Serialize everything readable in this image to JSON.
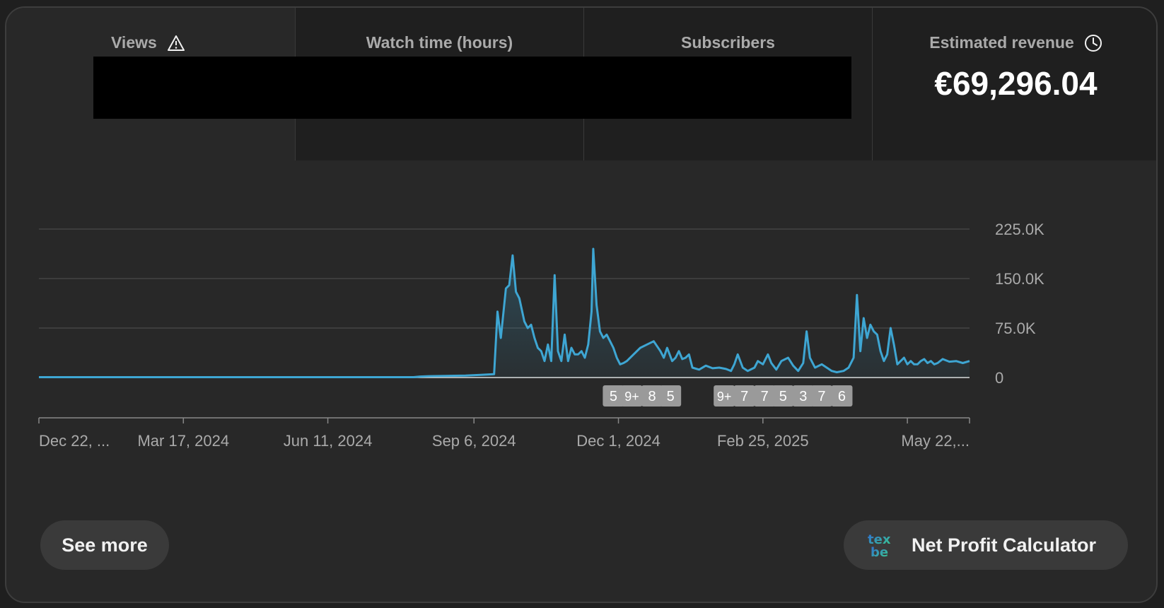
{
  "metrics": {
    "views": {
      "label": "Views",
      "icon": "warning-icon"
    },
    "watch_time": {
      "label": "Watch time (hours)"
    },
    "subscribers": {
      "label": "Subscribers"
    },
    "revenue": {
      "label": "Estimated revenue",
      "value": "€69,296.04",
      "icon": "clock-icon"
    }
  },
  "chart_data": {
    "type": "area",
    "color": "#3ea6d3",
    "yticks": [
      "225.0K",
      "150.0K",
      "75.0K",
      "0"
    ],
    "ytick_values": [
      225000,
      150000,
      75000,
      0
    ],
    "ylim": [
      0,
      225000
    ],
    "xlim": [
      "2023-12-22",
      "2025-06-28"
    ],
    "xtick_labels": [
      "Dec 22, ...",
      "Mar 17, 2024",
      "Jun 11, 2024",
      "Sep 6, 2024",
      "Dec 1, 2024",
      "Feb 25, 2025",
      "May 22,..."
    ],
    "xtick_dates": [
      "2023-12-22",
      "2024-03-17",
      "2024-06-11",
      "2024-09-06",
      "2024-12-01",
      "2025-02-25",
      "2025-05-22"
    ],
    "series": [
      {
        "x": [
          "2023-12-22",
          "2024-08-01",
          "2024-08-05",
          "2024-08-10",
          "2024-08-20",
          "2024-09-01",
          "2024-09-10",
          "2024-09-18",
          "2024-09-20",
          "2024-09-22",
          "2024-09-25",
          "2024-09-27",
          "2024-09-29",
          "2024-10-01",
          "2024-10-03",
          "2024-10-06",
          "2024-10-08",
          "2024-10-10",
          "2024-10-12",
          "2024-10-14",
          "2024-10-16",
          "2024-10-18",
          "2024-10-20",
          "2024-10-22",
          "2024-10-24",
          "2024-10-26",
          "2024-10-28",
          "2024-10-30",
          "2024-11-01",
          "2024-11-03",
          "2024-11-05",
          "2024-11-07",
          "2024-11-09",
          "2024-11-11",
          "2024-11-13",
          "2024-11-15",
          "2024-11-16",
          "2024-11-18",
          "2024-11-20",
          "2024-11-22",
          "2024-11-24",
          "2024-11-26",
          "2024-11-28",
          "2024-11-30",
          "2024-12-02",
          "2024-12-04",
          "2024-12-06",
          "2024-12-10",
          "2024-12-14",
          "2024-12-18",
          "2024-12-22",
          "2024-12-26",
          "2024-12-28",
          "2024-12-30",
          "2025-01-02",
          "2025-01-04",
          "2025-01-06",
          "2025-01-08",
          "2025-01-10",
          "2025-01-12",
          "2025-01-14",
          "2025-01-18",
          "2025-01-22",
          "2025-01-26",
          "2025-01-30",
          "2025-02-03",
          "2025-02-06",
          "2025-02-08",
          "2025-02-10",
          "2025-02-13",
          "2025-02-16",
          "2025-02-20",
          "2025-02-22",
          "2025-02-25",
          "2025-02-28",
          "2025-03-02",
          "2025-03-05",
          "2025-03-08",
          "2025-03-12",
          "2025-03-15",
          "2025-03-18",
          "2025-03-21",
          "2025-03-23",
          "2025-03-25",
          "2025-03-28",
          "2025-04-01",
          "2025-04-04",
          "2025-04-07",
          "2025-04-10",
          "2025-04-14",
          "2025-04-17",
          "2025-04-20",
          "2025-04-22",
          "2025-04-24",
          "2025-04-26",
          "2025-04-28",
          "2025-04-30",
          "2025-05-02",
          "2025-05-04",
          "2025-05-06",
          "2025-05-08",
          "2025-05-10",
          "2025-05-12",
          "2025-05-14",
          "2025-05-16",
          "2025-05-18",
          "2025-05-20",
          "2025-05-22",
          "2025-05-24",
          "2025-05-26",
          "2025-05-28",
          "2025-05-30",
          "2025-06-01",
          "2025-06-03",
          "2025-06-05",
          "2025-06-07",
          "2025-06-09",
          "2025-06-12",
          "2025-06-16",
          "2025-06-20",
          "2025-06-24",
          "2025-06-28"
        ],
        "y": [
          500,
          500,
          1500,
          2000,
          2500,
          3000,
          4000,
          5000,
          100000,
          60000,
          135000,
          140000,
          185000,
          130000,
          120000,
          85000,
          75000,
          80000,
          60000,
          45000,
          40000,
          25000,
          50000,
          25000,
          155000,
          40000,
          25000,
          65000,
          25000,
          45000,
          35000,
          35000,
          40000,
          30000,
          50000,
          100000,
          195000,
          110000,
          70000,
          60000,
          65000,
          55000,
          45000,
          30000,
          20000,
          22000,
          25000,
          35000,
          45000,
          50000,
          55000,
          40000,
          30000,
          45000,
          25000,
          30000,
          40000,
          28000,
          30000,
          35000,
          15000,
          12000,
          18000,
          14000,
          15000,
          13000,
          10000,
          20000,
          35000,
          15000,
          10000,
          15000,
          25000,
          20000,
          35000,
          22000,
          12000,
          25000,
          30000,
          18000,
          10000,
          22000,
          70000,
          30000,
          15000,
          20000,
          15000,
          10000,
          8000,
          10000,
          15000,
          30000,
          125000,
          40000,
          90000,
          60000,
          80000,
          70000,
          65000,
          40000,
          25000,
          35000,
          75000,
          50000,
          20000,
          25000,
          30000,
          20000,
          25000,
          20000,
          20000,
          25000,
          28000,
          22000,
          25000,
          20000,
          22000,
          28000,
          24000,
          25000,
          22000,
          25000
        ]
      }
    ],
    "markers": [
      {
        "date": "2024-11-28",
        "label": "5"
      },
      {
        "date": "2024-12-09",
        "label": "9+"
      },
      {
        "date": "2024-12-21",
        "label": "8"
      },
      {
        "date": "2025-01-01",
        "label": "5"
      },
      {
        "date": "2025-02-02",
        "label": "9+"
      },
      {
        "date": "2025-02-14",
        "label": "7"
      },
      {
        "date": "2025-02-26",
        "label": "7"
      },
      {
        "date": "2025-03-09",
        "label": "5"
      },
      {
        "date": "2025-03-21",
        "label": "3"
      },
      {
        "date": "2025-04-01",
        "label": "7"
      },
      {
        "date": "2025-04-13",
        "label": "6"
      }
    ]
  },
  "actions": {
    "see_more": "See more",
    "net_profit": "Net Profit Calculator",
    "net_profit_icon": "tex-logo-icon"
  }
}
